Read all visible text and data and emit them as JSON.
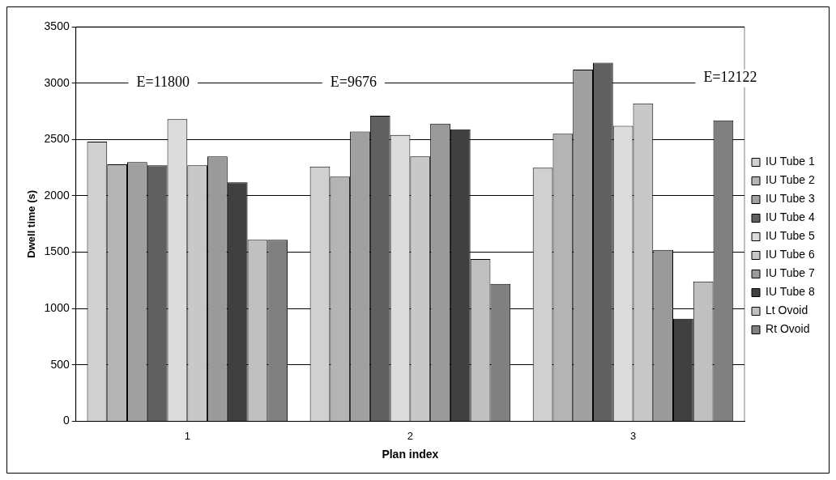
{
  "chart_data": {
    "type": "bar",
    "xlabel": "Plan index",
    "ylabel": "Dwell time (s)",
    "categories": [
      "1",
      "2",
      "3"
    ],
    "series": [
      {
        "name": "IU Tube 1",
        "color": "#d0d0d0",
        "values": [
          2480,
          2260,
          2250
        ]
      },
      {
        "name": "IU Tube 2",
        "color": "#b4b4b4",
        "values": [
          2280,
          2170,
          2550
        ]
      },
      {
        "name": "IU Tube 3",
        "color": "#a0a0a0",
        "values": [
          2300,
          2570,
          3120
        ]
      },
      {
        "name": "IU Tube 4",
        "color": "#606060",
        "values": [
          2270,
          2710,
          3180
        ]
      },
      {
        "name": "IU Tube 5",
        "color": "#dcdcdc",
        "values": [
          2680,
          2540,
          2620
        ]
      },
      {
        "name": "IU Tube 6",
        "color": "#c8c8c8",
        "values": [
          2270,
          2350,
          2820
        ]
      },
      {
        "name": "IU Tube 7",
        "color": "#9a9a9a",
        "values": [
          2350,
          2640,
          1520
        ]
      },
      {
        "name": "IU Tube 8",
        "color": "#404040",
        "values": [
          2120,
          2590,
          910
        ]
      },
      {
        "name": "Lt Ovoid",
        "color": "#c0c0c0",
        "values": [
          1610,
          1440,
          1240
        ]
      },
      {
        "name": "Rt Ovoid",
        "color": "#808080",
        "values": [
          1610,
          1220,
          2670
        ]
      }
    ],
    "ylim": [
      0,
      3500
    ],
    "yticks": [
      0,
      500,
      1000,
      1500,
      2000,
      2500,
      3000,
      3500
    ],
    "grid": "y",
    "legend": "right",
    "annotations": [
      "E=11800",
      "E=9676",
      "E=12122"
    ]
  }
}
